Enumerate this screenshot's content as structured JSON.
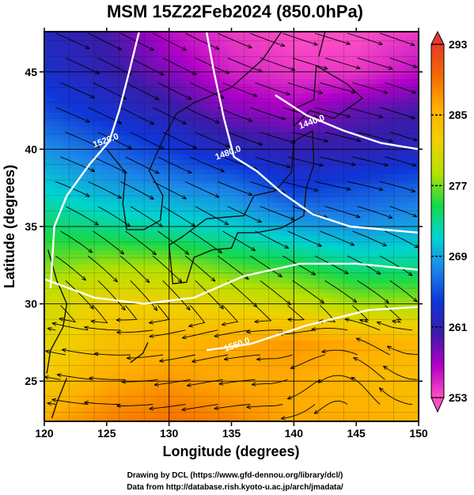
{
  "chart_data": {
    "type": "heatmap",
    "title": "MSM 15Z22Feb2024 (850.0hPa)",
    "xlabel": "Longitude (degrees)",
    "ylabel": "Latitude  (degrees)",
    "xlim": [
      120,
      150
    ],
    "ylim": [
      22.4,
      47.6
    ],
    "xticks": [
      120,
      125,
      130,
      135,
      140,
      145,
      150
    ],
    "yticks": [
      25,
      30,
      35,
      40,
      45
    ],
    "grid": true,
    "colorbar": {
      "ticks": [
        253,
        261,
        269,
        277,
        285,
        293
      ],
      "range": [
        253,
        293
      ],
      "extend": "both"
    },
    "contour_labels": [
      {
        "text": "1520.0",
        "lon": 125.0,
        "lat": 40.4
      },
      {
        "text": "1480.0",
        "lon": 134.8,
        "lat": 39.6
      },
      {
        "text": "1440.0",
        "lon": 141.5,
        "lat": 41.6
      },
      {
        "text": "1560.0",
        "lon": 135.5,
        "lat": 27.2
      }
    ],
    "contours": [
      {
        "value": 1520,
        "points": [
          [
            127.6,
            47.6
          ],
          [
            126.8,
            45.0
          ],
          [
            126.0,
            42.5
          ],
          [
            125.2,
            40.5
          ],
          [
            123.6,
            39.0
          ],
          [
            121.8,
            37.0
          ],
          [
            120.8,
            35.0
          ],
          [
            120.5,
            31.0
          ]
        ]
      },
      {
        "value": 1480,
        "points": [
          [
            133.0,
            47.6
          ],
          [
            133.6,
            45.0
          ],
          [
            134.4,
            42.0
          ],
          [
            135.2,
            39.5
          ],
          [
            137.0,
            38.6
          ],
          [
            139.0,
            37.2
          ],
          [
            141.5,
            35.8
          ],
          [
            144.5,
            35.0
          ],
          [
            150.0,
            34.6
          ]
        ]
      },
      {
        "value": 1440,
        "points": [
          [
            138.5,
            43.5
          ],
          [
            141.0,
            42.2
          ],
          [
            144.0,
            41.2
          ],
          [
            147.0,
            40.4
          ],
          [
            150.0,
            40.0
          ]
        ]
      },
      {
        "value": 1560,
        "points": [
          [
            120.0,
            31.6
          ],
          [
            124.0,
            30.4
          ],
          [
            128.0,
            30.0
          ],
          [
            132.0,
            30.4
          ],
          [
            136.0,
            31.8
          ],
          [
            140.5,
            32.6
          ],
          [
            145.0,
            32.6
          ],
          [
            150.0,
            32.2
          ]
        ]
      },
      {
        "value": 1560,
        "points": [
          [
            133.0,
            27.0
          ],
          [
            136.5,
            27.4
          ],
          [
            141.0,
            28.6
          ],
          [
            146.0,
            29.6
          ],
          [
            150.0,
            29.8
          ]
        ]
      }
    ],
    "temperature_field_K": {
      "lats": [
        47.5,
        45,
        42.5,
        40,
        37.5,
        35,
        32.5,
        30,
        27.5,
        25,
        22.5
      ],
      "lons": [
        120,
        125,
        130,
        135,
        140,
        145,
        150
      ],
      "values": [
        [
          262,
          260,
          256,
          254,
          253,
          253,
          254
        ],
        [
          263,
          261,
          258,
          255,
          254,
          254,
          256
        ],
        [
          265,
          263,
          261,
          258,
          257,
          259,
          260
        ],
        [
          268,
          266,
          264,
          262,
          261,
          261,
          262
        ],
        [
          271,
          269,
          268,
          267,
          264,
          265,
          266
        ],
        [
          274,
          273,
          272,
          271,
          269,
          268,
          269
        ],
        [
          277,
          278,
          278,
          276,
          275,
          273,
          273
        ],
        [
          280,
          282,
          282,
          281,
          280,
          278,
          278
        ],
        [
          281,
          284,
          285,
          286,
          287,
          286,
          285
        ],
        [
          283,
          286,
          287,
          286,
          286,
          285,
          284
        ],
        [
          286,
          288,
          289,
          288,
          286,
          286,
          285
        ]
      ]
    }
  },
  "credits": {
    "line1": "Drawing by DCL (https://www.gfd-dennou.org/library/dcl/)",
    "line2": "Data from http://database.rish.kyoto-u.ac.jp/arch/jmadata/"
  },
  "colors": {
    "colormap": [
      "#ff4fc4",
      "#b000c8",
      "#3a1ca8",
      "#0e36d8",
      "#1c86e8",
      "#00d4d0",
      "#16d84a",
      "#b6e000",
      "#f0d000",
      "#ffb000",
      "#f46a00",
      "#e83a2a"
    ],
    "contour": "#ffffff",
    "streamline": "#000000",
    "frame": "#000000",
    "coast": "#111111"
  }
}
